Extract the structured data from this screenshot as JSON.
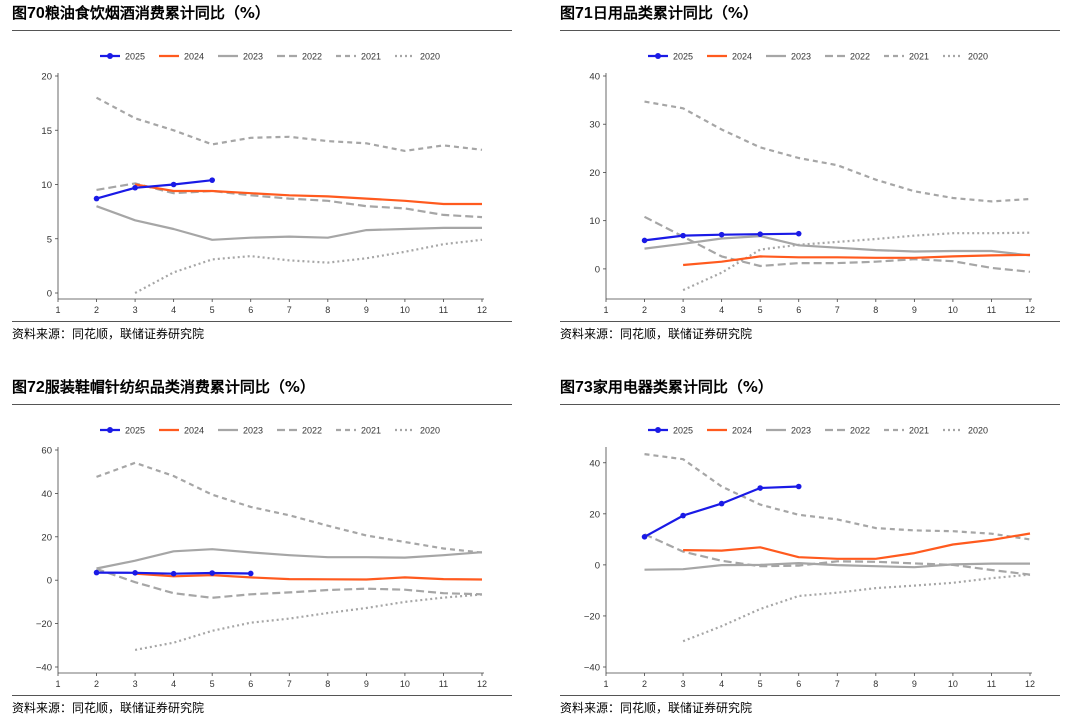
{
  "legend_labels": [
    "2025",
    "2024",
    "2023",
    "2022",
    "2021",
    "2020"
  ],
  "colors": {
    "2025": "#1a1ae6",
    "2024": "#ff5a1e",
    "2023": "#a6a6a6",
    "2022": "#a6a6a6",
    "2021": "#a6a6a6",
    "2020": "#a6a6a6"
  },
  "chart_data": [
    {
      "type": "line",
      "title_prefix": "图",
      "title_num": "70",
      "title_text": "粮油食饮烟酒消费累计同比（%）",
      "source": "资料来源：同花顺，联储证券研究院",
      "x": [
        1,
        2,
        3,
        4,
        5,
        6,
        7,
        8,
        9,
        10,
        11,
        12
      ],
      "xlim": [
        1,
        12
      ],
      "ylim": [
        0,
        20
      ],
      "yticks": [
        0,
        5,
        10,
        15,
        20
      ],
      "series": [
        {
          "name": "2025",
          "values": [
            null,
            8.7,
            9.7,
            10.0,
            10.4,
            null,
            null,
            null,
            null,
            null,
            null,
            null
          ]
        },
        {
          "name": "2024",
          "values": [
            null,
            null,
            10.0,
            9.4,
            9.4,
            9.2,
            9.0,
            8.9,
            8.7,
            8.5,
            8.2,
            8.2
          ]
        },
        {
          "name": "2023",
          "values": [
            null,
            8.0,
            6.7,
            5.9,
            4.9,
            5.1,
            5.2,
            5.1,
            5.8,
            5.9,
            6.0,
            6.0
          ]
        },
        {
          "name": "2022",
          "values": [
            null,
            9.5,
            10.1,
            9.2,
            9.4,
            9.0,
            8.7,
            8.5,
            8.0,
            7.8,
            7.2,
            7.0
          ]
        },
        {
          "name": "2021",
          "values": [
            null,
            18.0,
            16.1,
            15.0,
            13.7,
            14.3,
            14.4,
            14.0,
            13.8,
            13.1,
            13.6,
            13.2
          ]
        },
        {
          "name": "2020",
          "values": [
            null,
            null,
            0.0,
            1.9,
            3.1,
            3.4,
            3.0,
            2.8,
            3.2,
            3.8,
            4.5,
            4.9
          ]
        }
      ]
    },
    {
      "type": "line",
      "title_prefix": "图",
      "title_num": "71",
      "title_text": "日用品类累计同比（%）",
      "source": "资料来源：同花顺，联储证券研究院",
      "x": [
        1,
        2,
        3,
        4,
        5,
        6,
        7,
        8,
        9,
        10,
        11,
        12
      ],
      "xlim": [
        1,
        12
      ],
      "ylim": [
        -5,
        40
      ],
      "yticks": [
        0,
        10,
        20,
        30,
        40
      ],
      "series": [
        {
          "name": "2025",
          "values": [
            null,
            5.9,
            6.9,
            7.1,
            7.2,
            7.3,
            null,
            null,
            null,
            null,
            null,
            null
          ]
        },
        {
          "name": "2024",
          "values": [
            null,
            null,
            0.8,
            1.5,
            2.6,
            2.4,
            2.4,
            2.3,
            2.3,
            2.6,
            2.8,
            2.9
          ]
        },
        {
          "name": "2023",
          "values": [
            null,
            4.2,
            5.2,
            6.3,
            6.8,
            4.9,
            4.4,
            3.9,
            3.6,
            3.7,
            3.7,
            2.8
          ]
        },
        {
          "name": "2022",
          "values": [
            null,
            10.8,
            6.7,
            2.6,
            0.6,
            1.2,
            1.2,
            1.5,
            2.0,
            1.6,
            0.2,
            -0.6
          ]
        },
        {
          "name": "2021",
          "values": [
            null,
            34.7,
            33.3,
            28.9,
            25.2,
            23.0,
            21.5,
            18.5,
            16.1,
            14.7,
            14.0,
            14.5
          ]
        },
        {
          "name": "2020",
          "values": [
            null,
            null,
            -4.4,
            -0.8,
            4.0,
            5.0,
            5.6,
            6.2,
            6.9,
            7.4,
            7.4,
            7.5
          ]
        }
      ]
    },
    {
      "type": "line",
      "title_prefix": "图",
      "title_num": "72",
      "title_text": "服装鞋帽针纺织品类消费累计同比（%）",
      "source": "资料来源：同花顺，联储证券研究院",
      "x": [
        1,
        2,
        3,
        4,
        5,
        6,
        7,
        8,
        9,
        10,
        11,
        12
      ],
      "xlim": [
        1,
        12
      ],
      "ylim": [
        -40,
        60
      ],
      "yticks": [
        -40,
        -20,
        0,
        20,
        40,
        60
      ],
      "series": [
        {
          "name": "2025",
          "values": [
            null,
            3.5,
            3.4,
            3.0,
            3.3,
            3.1,
            null,
            null,
            null,
            null,
            null,
            null
          ]
        },
        {
          "name": "2024",
          "values": [
            null,
            null,
            3.0,
            1.8,
            2.3,
            1.3,
            0.5,
            0.4,
            0.3,
            1.3,
            0.5,
            0.3
          ]
        },
        {
          "name": "2023",
          "values": [
            null,
            5.4,
            9.0,
            13.3,
            14.3,
            12.8,
            11.5,
            10.6,
            10.6,
            10.4,
            11.5,
            12.9
          ]
        },
        {
          "name": "2022",
          "values": [
            null,
            5.2,
            -0.9,
            -6.0,
            -8.1,
            -6.5,
            -5.6,
            -4.5,
            -3.9,
            -4.4,
            -6.0,
            -6.5
          ]
        },
        {
          "name": "2021",
          "values": [
            null,
            47.6,
            54.1,
            48.0,
            39.4,
            33.8,
            29.9,
            25.1,
            20.6,
            17.6,
            14.6,
            12.7
          ]
        },
        {
          "name": "2020",
          "values": [
            null,
            null,
            -32.1,
            -28.8,
            -23.3,
            -19.6,
            -17.7,
            -15.1,
            -12.8,
            -10.0,
            -8.0,
            -6.6
          ]
        }
      ]
    },
    {
      "type": "line",
      "title_prefix": "图",
      "title_num": "73",
      "title_text": "家用电器类累计同比（%）",
      "source": "资料来源：同花顺，联储证券研究院",
      "x": [
        1,
        2,
        3,
        4,
        5,
        6,
        7,
        8,
        9,
        10,
        11,
        12
      ],
      "xlim": [
        1,
        12
      ],
      "ylim": [
        -40,
        45
      ],
      "yticks": [
        -40,
        -20,
        0,
        20,
        40
      ],
      "series": [
        {
          "name": "2025",
          "values": [
            null,
            11.0,
            19.3,
            24.0,
            30.1,
            30.7,
            null,
            null,
            null,
            null,
            null,
            null
          ]
        },
        {
          "name": "2024",
          "values": [
            null,
            null,
            5.8,
            5.6,
            6.9,
            3.0,
            2.4,
            2.4,
            4.6,
            8.0,
            9.8,
            12.3
          ]
        },
        {
          "name": "2023",
          "values": [
            null,
            -1.9,
            -1.7,
            -0.1,
            0.0,
            0.7,
            -0.1,
            -0.5,
            -0.9,
            0.2,
            0.5,
            0.5
          ]
        },
        {
          "name": "2022",
          "values": [
            null,
            12.0,
            5.2,
            1.6,
            -0.5,
            -0.3,
            1.4,
            1.2,
            0.6,
            0.0,
            -2.0,
            -3.8
          ]
        },
        {
          "name": "2021",
          "values": [
            null,
            43.4,
            41.4,
            30.7,
            23.6,
            19.6,
            17.8,
            14.4,
            13.5,
            13.2,
            12.2,
            10.0
          ]
        },
        {
          "name": "2020",
          "values": [
            null,
            null,
            -29.9,
            -24.0,
            -17.3,
            -12.2,
            -10.9,
            -9.1,
            -8.1,
            -7.0,
            -5.2,
            -3.8
          ]
        }
      ]
    }
  ]
}
